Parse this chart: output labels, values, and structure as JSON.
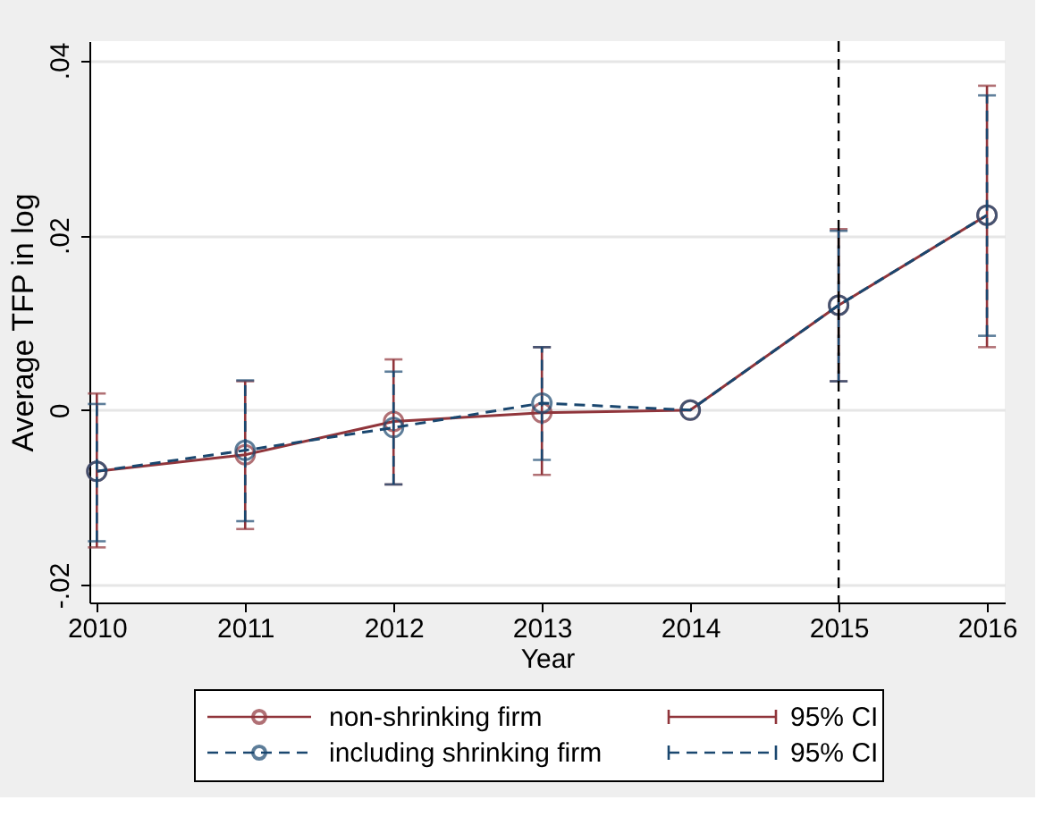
{
  "chart_data": {
    "type": "line",
    "xlabel": "Year",
    "ylabel": "Average TFP in log",
    "x": [
      2010,
      2011,
      2012,
      2013,
      2014,
      2015,
      2016
    ],
    "xlim": [
      2009.95,
      2016.12
    ],
    "xticks": [
      2010,
      2011,
      2012,
      2013,
      2014,
      2015,
      2016
    ],
    "ylim": [
      -0.022,
      0.0422
    ],
    "yticks": [
      {
        "value": -0.02,
        "label": "-.02"
      },
      {
        "value": 0,
        "label": "0"
      },
      {
        "value": 0.02,
        "label": ".02"
      },
      {
        "value": 0.04,
        "label": ".04"
      }
    ],
    "grid": "y",
    "marker": "circle",
    "legend": "bottom",
    "series": [
      {
        "name": "non-shrinking firm",
        "color": "#90353b",
        "line_style": "solid",
        "values": [
          -0.007,
          -0.0051,
          -0.0013,
          -0.0003,
          0,
          0.012,
          0.0223
        ],
        "errors": [
          [
            -0.0157,
            0.0019
          ],
          [
            -0.0136,
            0.0033
          ],
          [
            -0.0085,
            0.0058
          ],
          [
            -0.0074,
            0.0072
          ],
          null,
          [
            0.0033,
            0.0207
          ],
          [
            0.0072,
            0.0371
          ]
        ]
      },
      {
        "name": "including shrinking firm",
        "color": "#1a476f",
        "line_style": "dashed",
        "values": [
          -0.007,
          -0.0046,
          -0.002,
          0.0008,
          0,
          0.012,
          0.0223
        ],
        "errors": [
          [
            -0.015,
            0.0007
          ],
          [
            -0.0127,
            0.0034
          ],
          [
            -0.0085,
            0.0044
          ],
          [
            -0.0057,
            0.0072
          ],
          null,
          [
            0.0033,
            0.0205
          ],
          [
            0.0085,
            0.036
          ]
        ]
      }
    ],
    "ref_lines": [
      {
        "axis": "x",
        "value": 2015,
        "label": null,
        "color": "#000000",
        "line_style": "dashed"
      }
    ],
    "annotations": [
      "95% CI",
      "95% CI"
    ]
  }
}
